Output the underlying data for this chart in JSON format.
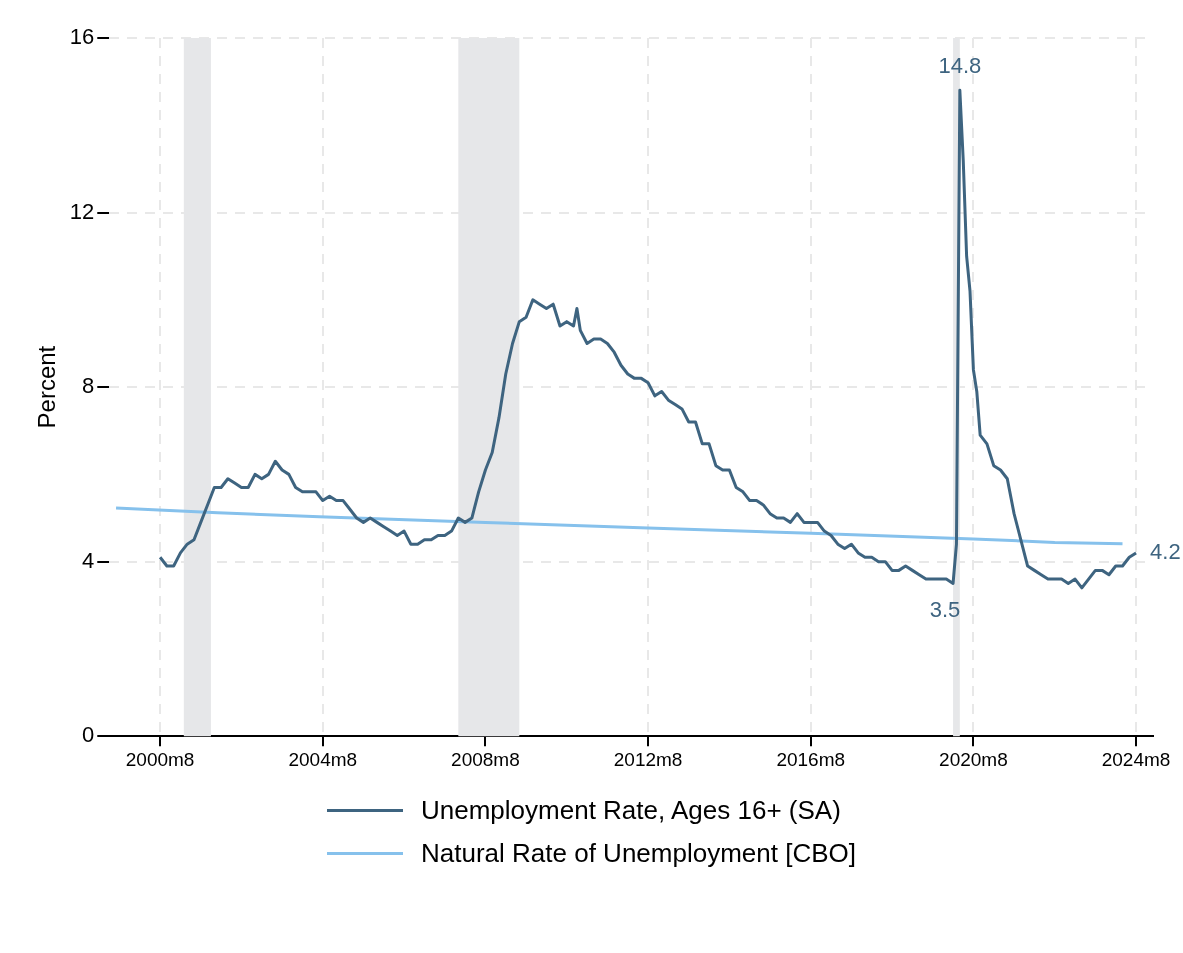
{
  "chart_data": {
    "type": "line",
    "ylabel": "Percent",
    "ylim": [
      0,
      16
    ],
    "yticks": [
      0,
      4,
      8,
      12,
      16
    ],
    "xlim": [
      "1999-05",
      "2025-01"
    ],
    "xticks": [
      {
        "value": "2000-08",
        "label": "2000m8"
      },
      {
        "value": "2004-08",
        "label": "2004m8"
      },
      {
        "value": "2008-08",
        "label": "2008m8"
      },
      {
        "value": "2012-08",
        "label": "2012m8"
      },
      {
        "value": "2016-08",
        "label": "2016m8"
      },
      {
        "value": "2020-08",
        "label": "2020m8"
      },
      {
        "value": "2024-08",
        "label": "2024m8"
      }
    ],
    "grid": true,
    "legend": "bottom",
    "line_style": "solid",
    "marker": "none",
    "bands": [
      {
        "axis": "x",
        "from": "2001-03",
        "to": "2001-11",
        "color": "#e6e7e9"
      },
      {
        "axis": "x",
        "from": "2007-12",
        "to": "2009-06",
        "color": "#e6e7e9"
      },
      {
        "axis": "x",
        "from": "2020-02",
        "to": "2020-04",
        "color": "#e6e7e9"
      }
    ],
    "annotations": [
      {
        "text": "14.8",
        "x": "2020-04",
        "y": 14.8
      },
      {
        "text": "3.5",
        "x": "2020-02",
        "y": 3.5
      },
      {
        "text": "4.2",
        "x": "2024-08",
        "y": 4.2
      }
    ],
    "series": [
      {
        "name": "Unemployment Rate, Ages 16+ (SA)",
        "color": "#3e6480",
        "x": [
          "2000-08",
          "2000-10",
          "2000-12",
          "2001-02",
          "2001-04",
          "2001-06",
          "2001-08",
          "2001-10",
          "2001-12",
          "2002-02",
          "2002-04",
          "2002-06",
          "2002-08",
          "2002-10",
          "2002-12",
          "2003-02",
          "2003-04",
          "2003-06",
          "2003-08",
          "2003-10",
          "2003-12",
          "2004-02",
          "2004-04",
          "2004-06",
          "2004-08",
          "2004-10",
          "2004-12",
          "2005-02",
          "2005-04",
          "2005-06",
          "2005-08",
          "2005-10",
          "2005-12",
          "2006-02",
          "2006-04",
          "2006-06",
          "2006-08",
          "2006-10",
          "2006-12",
          "2007-02",
          "2007-04",
          "2007-06",
          "2007-08",
          "2007-10",
          "2007-12",
          "2008-02",
          "2008-04",
          "2008-06",
          "2008-08",
          "2008-10",
          "2008-12",
          "2009-02",
          "2009-04",
          "2009-06",
          "2009-08",
          "2009-10",
          "2009-12",
          "2010-02",
          "2010-04",
          "2010-06",
          "2010-08",
          "2010-10",
          "2010-11",
          "2010-12",
          "2011-02",
          "2011-04",
          "2011-06",
          "2011-08",
          "2011-10",
          "2011-12",
          "2012-02",
          "2012-04",
          "2012-06",
          "2012-08",
          "2012-10",
          "2012-12",
          "2013-02",
          "2013-04",
          "2013-06",
          "2013-08",
          "2013-10",
          "2013-12",
          "2014-02",
          "2014-04",
          "2014-06",
          "2014-08",
          "2014-10",
          "2014-12",
          "2015-02",
          "2015-04",
          "2015-06",
          "2015-08",
          "2015-10",
          "2015-12",
          "2016-02",
          "2016-04",
          "2016-06",
          "2016-08",
          "2016-10",
          "2016-12",
          "2017-02",
          "2017-04",
          "2017-06",
          "2017-08",
          "2017-10",
          "2017-12",
          "2018-02",
          "2018-04",
          "2018-06",
          "2018-08",
          "2018-10",
          "2018-12",
          "2019-02",
          "2019-04",
          "2019-06",
          "2019-08",
          "2019-10",
          "2019-12",
          "2020-02",
          "2020-03",
          "2020-04",
          "2020-05",
          "2020-06",
          "2020-07",
          "2020-08",
          "2020-09",
          "2020-10",
          "2020-12",
          "2021-02",
          "2021-04",
          "2021-06",
          "2021-08",
          "2021-10",
          "2021-12",
          "2022-02",
          "2022-04",
          "2022-06",
          "2022-08",
          "2022-10",
          "2022-12",
          "2023-02",
          "2023-04",
          "2023-06",
          "2023-08",
          "2023-10",
          "2023-12",
          "2024-02",
          "2024-04",
          "2024-06",
          "2024-08"
        ],
        "values": [
          4.1,
          3.9,
          3.9,
          4.2,
          4.4,
          4.5,
          4.9,
          5.3,
          5.7,
          5.7,
          5.9,
          5.8,
          5.7,
          5.7,
          6.0,
          5.9,
          6.0,
          6.3,
          6.1,
          6.0,
          5.7,
          5.6,
          5.6,
          5.6,
          5.4,
          5.5,
          5.4,
          5.4,
          5.2,
          5.0,
          4.9,
          5.0,
          4.9,
          4.8,
          4.7,
          4.6,
          4.7,
          4.4,
          4.4,
          4.5,
          4.5,
          4.6,
          4.6,
          4.7,
          5.0,
          4.9,
          5.0,
          5.6,
          6.1,
          6.5,
          7.3,
          8.3,
          9.0,
          9.5,
          9.6,
          10.0,
          9.9,
          9.8,
          9.9,
          9.4,
          9.5,
          9.4,
          9.8,
          9.3,
          9.0,
          9.1,
          9.1,
          9.0,
          8.8,
          8.5,
          8.3,
          8.2,
          8.2,
          8.1,
          7.8,
          7.9,
          7.7,
          7.6,
          7.5,
          7.2,
          7.2,
          6.7,
          6.7,
          6.2,
          6.1,
          6.1,
          5.7,
          5.6,
          5.4,
          5.4,
          5.3,
          5.1,
          5.0,
          5.0,
          4.9,
          5.1,
          4.9,
          4.9,
          4.9,
          4.7,
          4.6,
          4.4,
          4.3,
          4.4,
          4.2,
          4.1,
          4.1,
          4.0,
          4.0,
          3.8,
          3.8,
          3.9,
          3.8,
          3.7,
          3.6,
          3.6,
          3.6,
          3.6,
          3.5,
          4.4,
          14.8,
          13.2,
          11.0,
          10.2,
          8.4,
          7.9,
          6.9,
          6.7,
          6.2,
          6.1,
          5.9,
          5.1,
          4.5,
          3.9,
          3.8,
          3.7,
          3.6,
          3.6,
          3.6,
          3.5,
          3.6,
          3.4,
          3.6,
          3.8,
          3.8,
          3.7,
          3.9,
          3.9,
          4.1,
          4.2
        ]
      },
      {
        "name": "Natural Rate of Unemployment [CBO]",
        "color": "#86c1ec",
        "x": [
          "1999-07",
          "2002-01",
          "2004-07",
          "2008-08",
          "2012-08",
          "2016-08",
          "2020-08",
          "2022-08",
          "2024-04"
        ],
        "values": [
          5.23,
          5.12,
          5.03,
          4.9,
          4.77,
          4.65,
          4.52,
          4.44,
          4.41
        ]
      }
    ]
  }
}
